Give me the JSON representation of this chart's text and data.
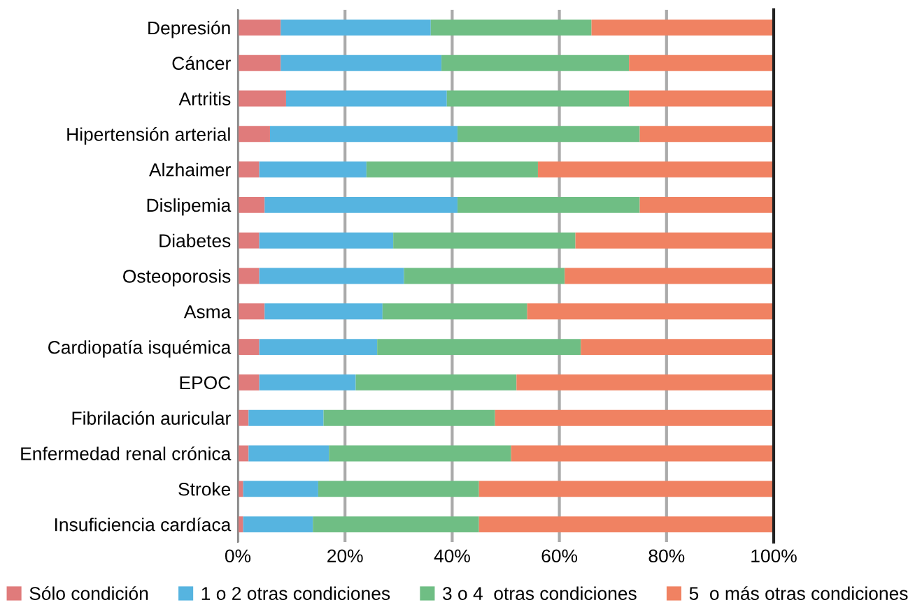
{
  "chart_data": {
    "type": "bar",
    "orientation": "horizontal",
    "stacked": true,
    "categories": [
      "Depresión",
      "Cáncer",
      "Artritis",
      "Hipertensión arterial",
      "Alzhaimer",
      "Dislipemia",
      "Diabetes",
      "Osteoporosis",
      "Asma",
      "Cardiopatía isquémica",
      "EPOC",
      "Fibrilación auricular",
      "Enfermedad renal crónica",
      "Stroke",
      "Insuficiencia cardíaca"
    ],
    "series": [
      {
        "name": "Sólo condición",
        "color": "#e07b7b",
        "values": [
          8,
          8,
          9,
          6,
          4,
          5,
          4,
          4,
          5,
          4,
          4,
          2,
          2,
          1,
          1
        ]
      },
      {
        "name": "1 o 2 otras condiciones",
        "color": "#56b4e0",
        "values": [
          28,
          30,
          30,
          35,
          20,
          36,
          25,
          27,
          22,
          22,
          18,
          14,
          15,
          14,
          13
        ]
      },
      {
        "name": "3 o 4  otras condiciones",
        "color": "#6fbe84",
        "values": [
          30,
          35,
          34,
          34,
          32,
          34,
          34,
          30,
          27,
          38,
          30,
          32,
          34,
          30,
          31
        ]
      },
      {
        "name": "5  o más otras condiciones",
        "color": "#f08262",
        "values": [
          34,
          27,
          27,
          25,
          44,
          25,
          37,
          39,
          46,
          36,
          48,
          52,
          49,
          55,
          55
        ]
      }
    ],
    "xlim": [
      0,
      100
    ],
    "xticks": [
      {
        "value": 0,
        "label": "0%"
      },
      {
        "value": 20,
        "label": "20%"
      },
      {
        "value": 40,
        "label": "40%"
      },
      {
        "value": 60,
        "label": "60%"
      },
      {
        "value": 80,
        "label": "80%"
      },
      {
        "value": 100,
        "label": "100%"
      }
    ],
    "grid": "x",
    "legend": "bottom"
  }
}
